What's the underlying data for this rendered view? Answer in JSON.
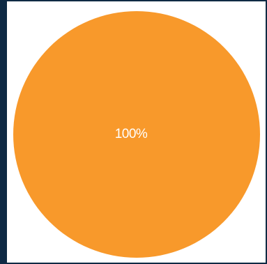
{
  "chart_data": {
    "type": "pie",
    "categories": [
      ""
    ],
    "values": [
      100
    ],
    "data_labels": [
      "100%"
    ],
    "colors": [
      "#f8992b"
    ],
    "legend": "none"
  },
  "theme": {
    "background": "#0e2a44",
    "panel": "#ffffff",
    "label_color": "#ffffff"
  }
}
